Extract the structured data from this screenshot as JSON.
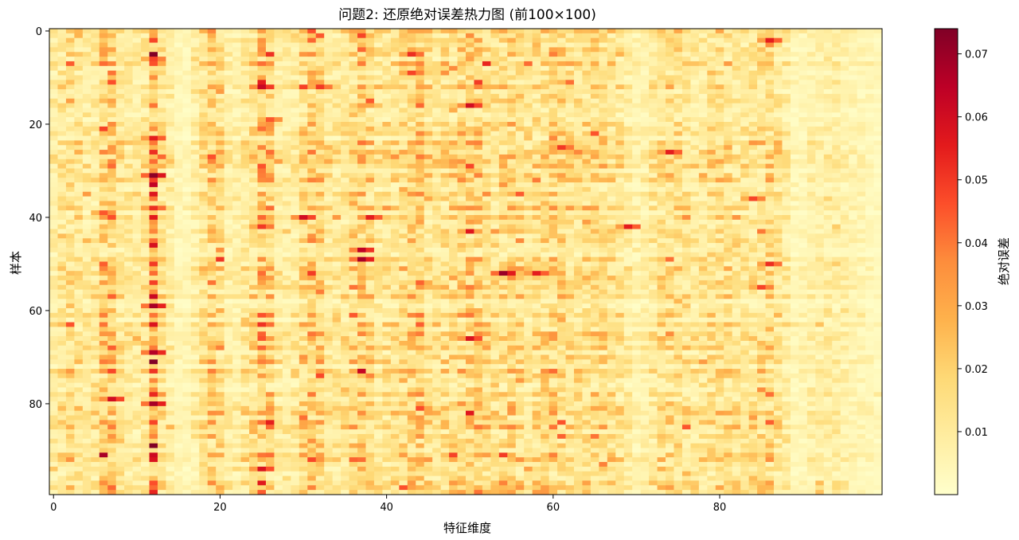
{
  "chart_data": {
    "type": "heatmap",
    "title": "问题2: 还原绝对误差热力图 (前100×100)",
    "xlabel": "特征维度",
    "ylabel": "样本",
    "colorbar_label": "绝对误差",
    "colormap": "YlOrRd",
    "colormap_stops": [
      "#ffffcc",
      "#ffeda0",
      "#fed976",
      "#feb24c",
      "#fd8d3c",
      "#fc4e2a",
      "#e31a1c",
      "#bd0026",
      "#800026"
    ],
    "rows": 100,
    "cols": 100,
    "x_range": [
      0,
      99
    ],
    "y_range": [
      0,
      99
    ],
    "x_ticks": [
      0,
      20,
      40,
      60,
      80
    ],
    "y_ticks": [
      0,
      20,
      40,
      60,
      80
    ],
    "y_inverted": true,
    "vmin": 0.0,
    "vmax": 0.074,
    "colorbar_ticks": [
      0.01,
      0.02,
      0.03,
      0.04,
      0.05,
      0.06,
      0.07
    ],
    "column_profile": [
      0.011,
      0.014,
      0.017,
      0.015,
      0.012,
      0.013,
      0.022,
      0.024,
      0.014,
      0.012,
      0.011,
      0.013,
      0.034,
      0.015,
      0.01,
      0.006,
      0.005,
      0.009,
      0.016,
      0.021,
      0.018,
      0.01,
      0.009,
      0.013,
      0.017,
      0.028,
      0.022,
      0.011,
      0.01,
      0.012,
      0.019,
      0.025,
      0.021,
      0.013,
      0.012,
      0.014,
      0.018,
      0.023,
      0.019,
      0.013,
      0.014,
      0.015,
      0.018,
      0.022,
      0.024,
      0.017,
      0.015,
      0.016,
      0.018,
      0.021,
      0.024,
      0.022,
      0.018,
      0.016,
      0.018,
      0.02,
      0.018,
      0.015,
      0.016,
      0.019,
      0.021,
      0.02,
      0.017,
      0.015,
      0.017,
      0.019,
      0.018,
      0.016,
      0.014,
      0.01,
      0.007,
      0.009,
      0.013,
      0.016,
      0.018,
      0.017,
      0.015,
      0.013,
      0.014,
      0.015,
      0.017,
      0.016,
      0.014,
      0.013,
      0.015,
      0.017,
      0.018,
      0.015,
      0.011,
      0.005,
      0.006,
      0.008,
      0.009,
      0.01,
      0.01,
      0.008,
      0.007,
      0.006,
      0.005,
      0.004
    ],
    "hotspots": [
      {
        "row": 31,
        "col": 12,
        "value": 0.072
      },
      {
        "row": 59,
        "col": 12,
        "value": 0.068
      },
      {
        "row": 69,
        "col": 12,
        "value": 0.066
      },
      {
        "row": 80,
        "col": 12,
        "value": 0.068
      },
      {
        "row": 23,
        "col": 12,
        "value": 0.055
      },
      {
        "row": 38,
        "col": 12,
        "value": 0.052
      },
      {
        "row": 6,
        "col": 12,
        "value": 0.048
      },
      {
        "row": 79,
        "col": 7,
        "value": 0.06
      },
      {
        "row": 39,
        "col": 6,
        "value": 0.045
      },
      {
        "row": 12,
        "col": 25,
        "value": 0.062
      },
      {
        "row": 94,
        "col": 25,
        "value": 0.058
      },
      {
        "row": 42,
        "col": 25,
        "value": 0.05
      },
      {
        "row": 19,
        "col": 26,
        "value": 0.045
      },
      {
        "row": 40,
        "col": 30,
        "value": 0.06
      },
      {
        "row": 12,
        "col": 32,
        "value": 0.05
      },
      {
        "row": 49,
        "col": 37,
        "value": 0.068
      },
      {
        "row": 47,
        "col": 37,
        "value": 0.064
      },
      {
        "row": 40,
        "col": 38,
        "value": 0.055
      },
      {
        "row": 5,
        "col": 43,
        "value": 0.052
      },
      {
        "row": 9,
        "col": 43,
        "value": 0.048
      },
      {
        "row": 16,
        "col": 50,
        "value": 0.06
      },
      {
        "row": 66,
        "col": 50,
        "value": 0.058
      },
      {
        "row": 52,
        "col": 54,
        "value": 0.07
      },
      {
        "row": 52,
        "col": 58,
        "value": 0.055
      },
      {
        "row": 25,
        "col": 61,
        "value": 0.05
      },
      {
        "row": 42,
        "col": 69,
        "value": 0.055
      },
      {
        "row": 26,
        "col": 74,
        "value": 0.055
      },
      {
        "row": 36,
        "col": 84,
        "value": 0.048
      },
      {
        "row": 2,
        "col": 86,
        "value": 0.055
      },
      {
        "row": 50,
        "col": 86,
        "value": 0.052
      },
      {
        "row": 55,
        "col": 85,
        "value": 0.048
      }
    ]
  }
}
